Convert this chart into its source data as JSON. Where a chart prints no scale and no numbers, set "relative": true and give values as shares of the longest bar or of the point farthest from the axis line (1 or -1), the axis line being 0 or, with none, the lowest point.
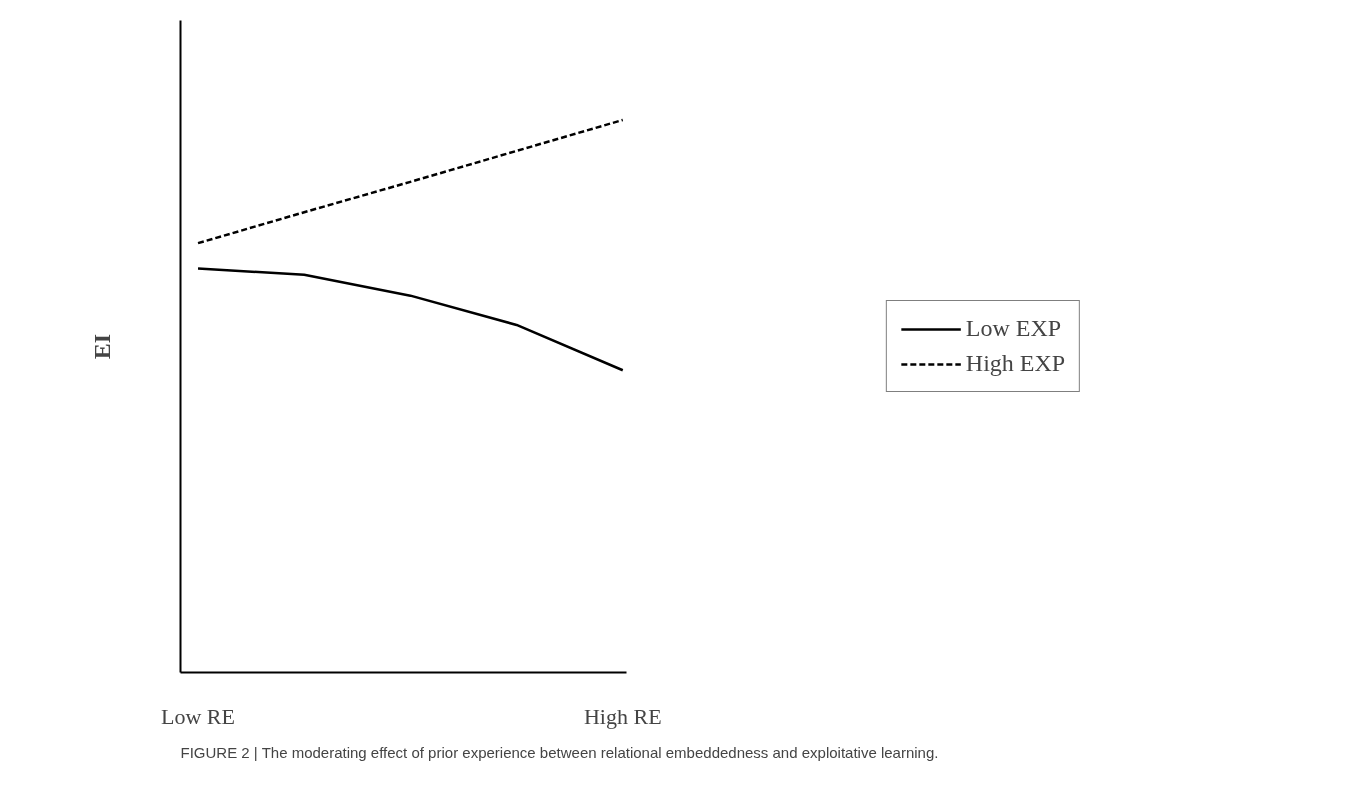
{
  "chart_data": {
    "type": "line",
    "relative": true,
    "ylabel": "EI",
    "categories": [
      "Low RE",
      null,
      null,
      null,
      "High RE"
    ],
    "series": [
      {
        "name": "Low EXP",
        "color": "#000000",
        "line_style": "solid",
        "values": [
          0.731,
          0.72,
          0.682,
          0.629,
          0.547
        ]
      },
      {
        "name": "High EXP",
        "color": "#000000",
        "line_style": "dashed",
        "values": [
          0.777,
          0.833,
          0.888,
          0.944,
          1.0
        ]
      }
    ],
    "legend": "right",
    "grid": false,
    "marker": "none",
    "annotations": [
      "FIGURE 2 | The moderating effect of prior experience between relational embeddedness and exploitative learning."
    ]
  }
}
